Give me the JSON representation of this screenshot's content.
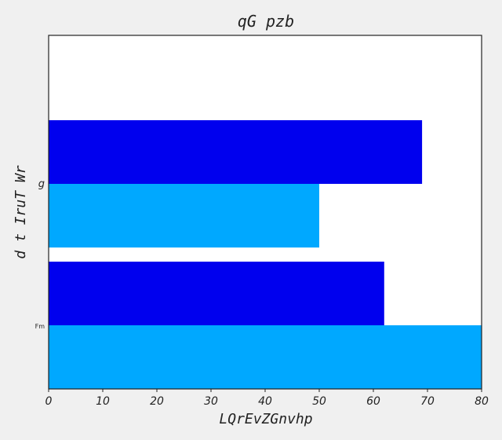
{
  "chart_data": {
    "type": "bar",
    "orientation": "horizontal",
    "title": "qG pzb",
    "xlabel": "LQrEvZGnvhp",
    "ylabel": "d t IruT Wr",
    "categories": [
      "g",
      "Fm"
    ],
    "series": [
      {
        "values": [
          69,
          62
        ],
        "color": "#0000ee"
      },
      {
        "values": [
          50,
          80
        ],
        "color": "#00a8ff"
      }
    ],
    "xlim": [
      0,
      80
    ],
    "xticks": [
      0,
      10,
      20,
      30,
      40,
      50,
      60,
      70,
      80
    ],
    "grid": false,
    "legend": "none"
  }
}
